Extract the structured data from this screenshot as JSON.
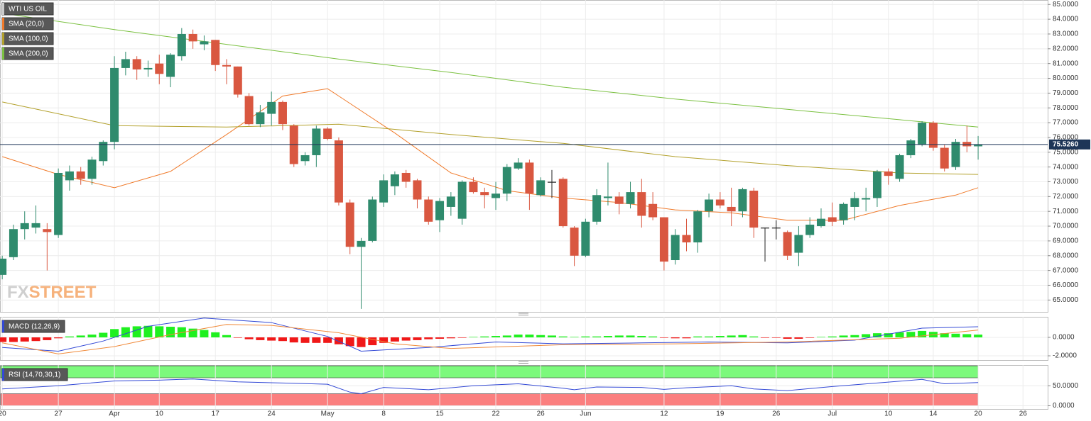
{
  "chart_data": [
    {
      "type": "candlestick",
      "name": "WTI US OIL",
      "up_color": "#2f8b6d",
      "down_color": "#d95740",
      "flat_color": "#222222",
      "xlim": [
        -0.2,
        93.2
      ],
      "ylim": [
        64.2,
        85.3
      ],
      "yticks": [
        {
          "value": 65,
          "label": "65.0000"
        },
        {
          "value": 66,
          "label": "66.0000"
        },
        {
          "value": 67,
          "label": "67.0000"
        },
        {
          "value": 68,
          "label": "68.0000"
        },
        {
          "value": 69,
          "label": "69.0000"
        },
        {
          "value": 70,
          "label": "70.0000"
        },
        {
          "value": 71,
          "label": "71.0000"
        },
        {
          "value": 72,
          "label": "72.0000"
        },
        {
          "value": 73,
          "label": "73.0000"
        },
        {
          "value": 74,
          "label": "74.0000"
        },
        {
          "value": 75,
          "label": "75.0000"
        },
        {
          "value": 76,
          "label": "76.0000"
        },
        {
          "value": 77,
          "label": "77.0000"
        },
        {
          "value": 78,
          "label": "78.0000"
        },
        {
          "value": 79,
          "label": "79.0000"
        },
        {
          "value": 80,
          "label": "80.0000"
        },
        {
          "value": 81,
          "label": "81.0000"
        },
        {
          "value": 82,
          "label": "82.0000"
        },
        {
          "value": 83,
          "label": "83.0000"
        },
        {
          "value": 84,
          "label": "84.0000"
        },
        {
          "value": 85,
          "label": "85.0000"
        }
      ],
      "open": [
        66.7,
        67.9,
        69.8,
        69.9,
        69.8,
        69.4,
        73.1,
        73.7,
        73.2,
        74.4,
        75.7,
        80.7,
        81.3,
        80.6,
        81.0,
        80.1,
        81.5,
        83.0,
        82.3,
        82.6,
        80.9,
        80.8,
        78.8,
        76.9,
        77.6,
        78.4,
        76.8,
        74.4,
        74.8,
        76.6,
        75.8,
        71.6,
        68.6,
        69.0,
        71.6,
        72.7,
        73.6,
        73.1,
        71.8,
        70.4,
        71.3,
        70.5,
        73.0,
        72.3,
        71.9,
        72.2,
        73.9,
        74.3,
        72.1,
        73.0,
        73.2,
        69.9,
        68.0,
        70.3,
        71.9,
        72.0,
        71.5,
        72.3,
        71.5,
        70.6,
        67.7,
        69.4,
        68.9,
        71.0,
        71.8,
        71.3,
        71.0,
        72.4,
        69.9,
        69.9,
        69.6,
        68.2,
        69.4,
        70.0,
        70.6,
        70.4,
        71.3,
        71.8,
        71.9,
        73.7,
        73.2,
        74.8,
        75.5,
        77.0,
        75.3,
        74.0,
        75.7,
        75.4
      ],
      "high": [
        68.0,
        70.1,
        71.0,
        71.4,
        70.2,
        73.9,
        74.1,
        74.0,
        74.7,
        75.8,
        81.5,
        81.8,
        81.5,
        81.2,
        81.6,
        81.7,
        83.4,
        83.3,
        82.9,
        82.6,
        81.3,
        80.8,
        79.0,
        78.2,
        79.1,
        78.5,
        76.9,
        75.0,
        76.8,
        76.7,
        76.0,
        71.8,
        69.2,
        72.0,
        73.5,
        73.7,
        73.8,
        73.2,
        72.0,
        71.9,
        72.3,
        73.1,
        73.3,
        72.6,
        73.0,
        74.2,
        74.6,
        74.5,
        73.3,
        73.8,
        73.3,
        70.0,
        70.5,
        72.5,
        74.3,
        72.3,
        73.0,
        73.2,
        72.3,
        70.6,
        69.8,
        70.5,
        71.1,
        72.2,
        72.3,
        72.6,
        72.6,
        72.6,
        69.9,
        70.4,
        69.7,
        70.0,
        70.6,
        71.2,
        71.6,
        71.6,
        72.3,
        72.6,
        73.8,
        73.9,
        74.9,
        75.9,
        77.1,
        77.1,
        75.5,
        75.9,
        76.8,
        76.1
      ],
      "low": [
        66.4,
        67.7,
        69.1,
        69.5,
        67.0,
        69.2,
        72.4,
        72.8,
        72.8,
        74.1,
        75.2,
        80.2,
        79.9,
        80.1,
        79.6,
        79.4,
        81.2,
        82.0,
        81.9,
        80.5,
        79.6,
        78.7,
        76.8,
        76.7,
        76.8,
        76.5,
        74.0,
        74.1,
        74.0,
        75.8,
        71.4,
        68.1,
        64.4,
        68.9,
        71.3,
        72.1,
        72.6,
        71.2,
        70.1,
        69.6,
        70.7,
        70.1,
        72.2,
        71.2,
        71.1,
        71.7,
        73.8,
        71.1,
        72.0,
        71.9,
        69.9,
        67.3,
        67.9,
        70.1,
        71.4,
        70.8,
        71.2,
        69.9,
        70.4,
        67.0,
        67.4,
        68.3,
        68.2,
        70.6,
        71.2,
        70.0,
        70.6,
        69.2,
        67.6,
        69.1,
        67.7,
        67.3,
        69.2,
        69.9,
        70.0,
        70.1,
        70.4,
        71.0,
        71.3,
        72.8,
        73.0,
        74.6,
        75.4,
        75.1,
        73.7,
        73.8,
        75.0,
        74.5
      ],
      "close": [
        67.8,
        69.8,
        70.2,
        70.2,
        69.6,
        73.6,
        73.7,
        73.2,
        74.5,
        75.7,
        80.7,
        81.3,
        80.6,
        80.7,
        80.3,
        81.6,
        83.0,
        82.5,
        82.5,
        80.9,
        80.8,
        78.9,
        76.9,
        77.7,
        78.4,
        76.9,
        74.2,
        74.8,
        76.6,
        75.9,
        71.6,
        68.6,
        69.0,
        71.8,
        73.1,
        73.5,
        73.0,
        71.8,
        70.3,
        71.7,
        72.0,
        73.0,
        72.3,
        72.1,
        72.2,
        74.0,
        74.3,
        72.2,
        73.1,
        73.0,
        70.0,
        68.0,
        70.3,
        72.1,
        72.0,
        71.5,
        72.3,
        70.7,
        70.6,
        67.6,
        69.4,
        68.9,
        71.0,
        71.8,
        71.4,
        71.0,
        72.5,
        69.9,
        69.9,
        69.9,
        68.0,
        69.4,
        70.1,
        70.5,
        70.3,
        71.5,
        71.9,
        71.9,
        73.7,
        73.4,
        74.8,
        75.8,
        77.0,
        75.3,
        73.9,
        75.7,
        75.4,
        75.5
      ],
      "overlays": [
        {
          "name": "SMA (20,0)",
          "color": "#f07b2c",
          "x": [
            0,
            5,
            10,
            15,
            20,
            25,
            29,
            30,
            35,
            40,
            45,
            50,
            55,
            60,
            65,
            70,
            75,
            80,
            85,
            87
          ],
          "values": [
            74.7,
            73.5,
            72.6,
            73.7,
            76.2,
            78.8,
            79.3,
            78.8,
            76.3,
            73.6,
            72.4,
            71.9,
            71.6,
            71.1,
            70.9,
            70.4,
            70.4,
            71.4,
            72.1,
            72.6
          ]
        },
        {
          "name": "SMA (100,0)",
          "color": "#b3a12c",
          "x": [
            0,
            10,
            20,
            30,
            40,
            50,
            60,
            70,
            80,
            87
          ],
          "values": [
            78.4,
            76.8,
            76.7,
            76.9,
            76.2,
            75.6,
            74.7,
            74.1,
            73.6,
            73.5
          ]
        },
        {
          "name": "SMA (200,0)",
          "color": "#7cc142",
          "x": [
            0,
            10,
            20,
            30,
            40,
            50,
            60,
            70,
            80,
            87
          ],
          "values": [
            84.4,
            83.3,
            82.3,
            81.3,
            80.4,
            79.4,
            78.6,
            77.9,
            77.2,
            76.7
          ]
        }
      ],
      "last_price": {
        "value": 75.526,
        "label": "75.5260"
      },
      "watermark": [
        "FX",
        "STREET"
      ]
    },
    {
      "type": "macd",
      "name": "MACD (12,26,9)",
      "xlim": [
        -0.2,
        93.2
      ],
      "ylim": [
        -2.46,
        2.23
      ],
      "yticks": [
        {
          "value": -2,
          "label": "-2.0000"
        },
        {
          "value": 0,
          "label": "0.0000"
        }
      ],
      "histogram": {
        "up_color": "#1ff01f",
        "down_color": "#f01818",
        "values": [
          -0.5,
          -0.5,
          -0.45,
          -0.4,
          -0.3,
          -0.1,
          0.1,
          0.2,
          0.3,
          0.5,
          0.9,
          1.1,
          1.2,
          1.25,
          1.2,
          1.15,
          1.1,
          0.95,
          0.8,
          0.55,
          0.25,
          -0.05,
          -0.2,
          -0.3,
          -0.35,
          -0.4,
          -0.55,
          -0.6,
          -0.6,
          -0.6,
          -0.75,
          -0.95,
          -1.05,
          -0.85,
          -0.6,
          -0.45,
          -0.35,
          -0.3,
          -0.2,
          -0.15,
          -0.1,
          -0.05,
          0.05,
          0.1,
          0.15,
          0.2,
          0.3,
          0.3,
          0.25,
          0.2,
          0.1,
          0.05,
          0.1,
          0.1,
          0.15,
          0.2,
          0.2,
          0.15,
          0.1,
          -0.05,
          -0.1,
          -0.1,
          0.1,
          0.1,
          0.15,
          0.2,
          0.25,
          0.1,
          -0.05,
          -0.05,
          -0.15,
          -0.15,
          -0.05,
          0.05,
          0.1,
          0.2,
          0.25,
          0.35,
          0.45,
          0.45,
          0.55,
          0.6,
          0.7,
          0.6,
          0.45,
          0.4,
          0.35,
          0.3
        ]
      },
      "macd_line": {
        "color": "#3349d6",
        "x": [
          0,
          5,
          9,
          13,
          18,
          24,
          29,
          32,
          38,
          44,
          50,
          57,
          63,
          70,
          76,
          82,
          87
        ],
        "values": [
          -1.1,
          -1.5,
          -0.4,
          1.2,
          2.1,
          1.6,
          0.1,
          -1.5,
          -1.1,
          -0.5,
          -0.7,
          -0.6,
          -0.5,
          -0.6,
          -0.3,
          1.0,
          1.15
        ]
      },
      "signal_line": {
        "color": "#f08a3a",
        "x": [
          0,
          5,
          10,
          15,
          20,
          24,
          30,
          35,
          40,
          45,
          50,
          60,
          70,
          80,
          87
        ],
        "values": [
          -0.6,
          -1.8,
          -1.0,
          0.3,
          1.4,
          1.3,
          0.5,
          -0.7,
          -1.2,
          -1.0,
          -0.8,
          -0.7,
          -0.5,
          -0.1,
          0.8
        ]
      }
    },
    {
      "type": "line",
      "name": "RSI (14,70,30,1)",
      "xlim": [
        -0.2,
        93.2
      ],
      "ylim": [
        -8,
        102
      ],
      "yticks": [
        {
          "value": 0,
          "label": "0.0000"
        },
        {
          "value": 50,
          "label": "50.0000"
        }
      ],
      "bands": [
        {
          "range": [
            70,
            100
          ],
          "color": "#7cf97c"
        },
        {
          "range": [
            0,
            30
          ],
          "color": "#fb7f7f"
        }
      ],
      "line": {
        "color": "#3349d6",
        "x": [
          0,
          5,
          10,
          14,
          17,
          21,
          25,
          29,
          31,
          32,
          34,
          38,
          42,
          46,
          50,
          51,
          53,
          57,
          59,
          61,
          65,
          67,
          70,
          74,
          78,
          82,
          84,
          87
        ],
        "values": [
          42,
          50,
          62,
          64,
          67,
          60,
          57,
          54,
          34,
          30,
          46,
          40,
          50,
          55,
          44,
          40,
          47,
          46,
          41,
          45,
          50,
          42,
          38,
          48,
          57,
          66,
          55,
          58
        ]
      },
      "xticks": [
        {
          "value": 0,
          "label": "20"
        },
        {
          "value": 5,
          "label": "27"
        },
        {
          "value": 10,
          "label": "Apr"
        },
        {
          "value": 14,
          "label": "10"
        },
        {
          "value": 19,
          "label": "17"
        },
        {
          "value": 24,
          "label": "24"
        },
        {
          "value": 29,
          "label": "May"
        },
        {
          "value": 34,
          "label": "8"
        },
        {
          "value": 39,
          "label": "15"
        },
        {
          "value": 44,
          "label": "22"
        },
        {
          "value": 48,
          "label": "26"
        },
        {
          "value": 52,
          "label": "Jun"
        },
        {
          "value": 59,
          "label": "12"
        },
        {
          "value": 64,
          "label": "19"
        },
        {
          "value": 69,
          "label": "26"
        },
        {
          "value": 74,
          "label": "Jul"
        },
        {
          "value": 79,
          "label": "10"
        },
        {
          "value": 83,
          "label": "14"
        },
        {
          "value": 87,
          "label": "20"
        },
        {
          "value": 91,
          "label": "26"
        }
      ]
    }
  ]
}
